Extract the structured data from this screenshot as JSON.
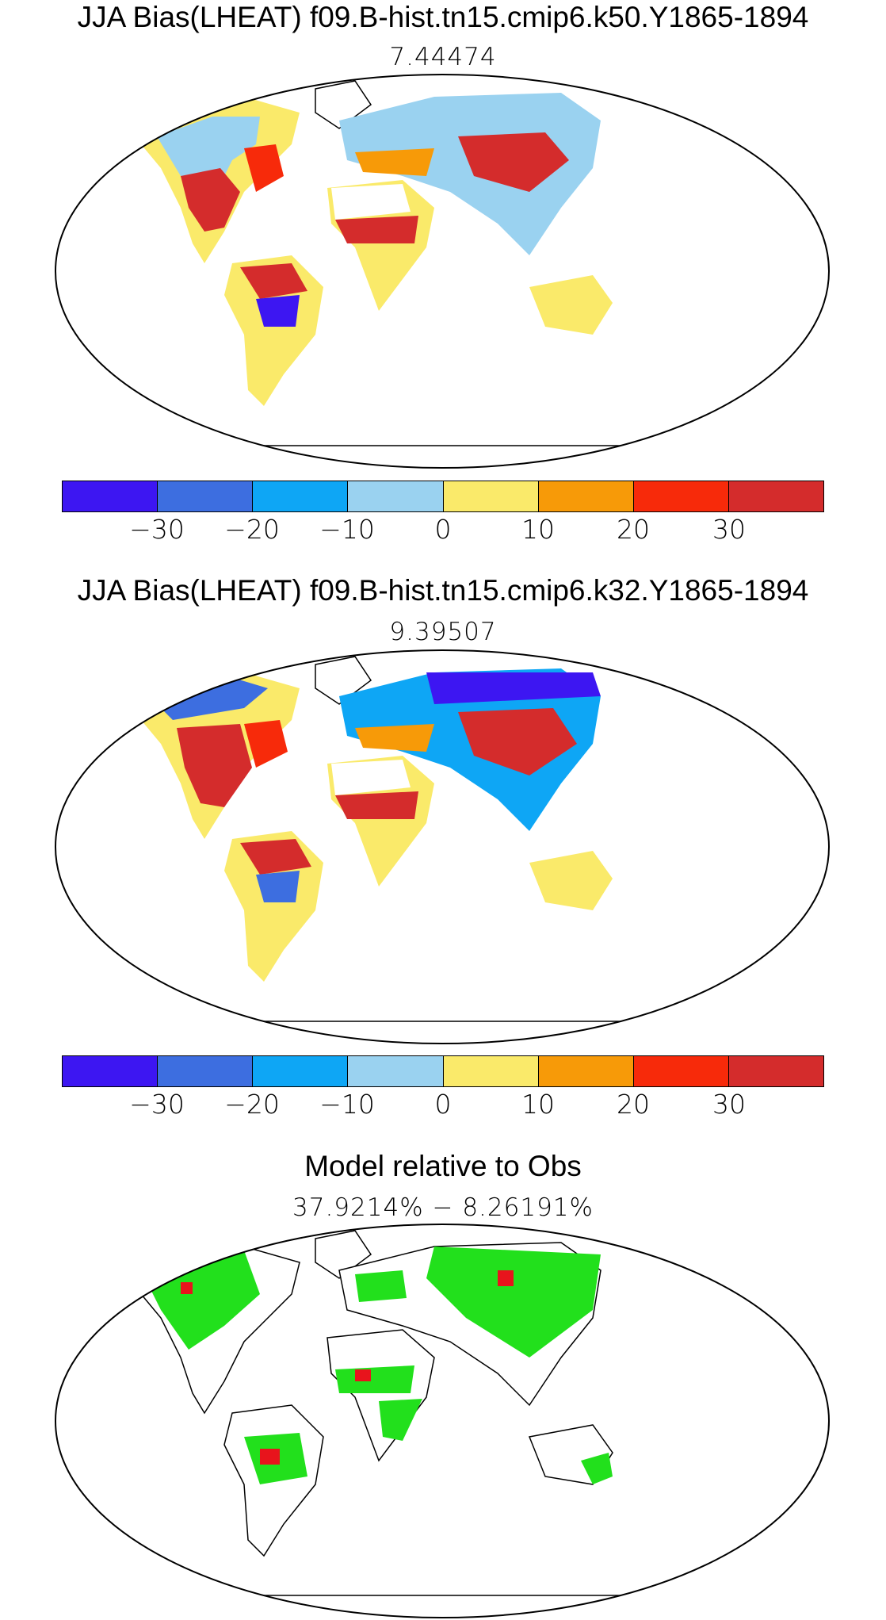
{
  "panels": [
    {
      "title": "JJA Bias(LHEAT) f09.B-hist.tn15.cmip6.k50.Y1865-1894",
      "subtitle": "7.44474"
    },
    {
      "title": "JJA Bias(LHEAT) f09.B-hist.tn15.cmip6.k32.Y1865-1894",
      "subtitle": "9.39507"
    },
    {
      "title": "Model relative to Obs",
      "subtitle": "37.9214% − 8.26191%"
    }
  ],
  "colorbar": {
    "colors": [
      "#3d16f2",
      "#3d6ee0",
      "#0ea6f5",
      "#9ad2f0",
      "#faea6a",
      "#f79a08",
      "#f72a0a",
      "#d42c2c"
    ],
    "tick_labels": [
      "−30",
      "−20",
      "−10",
      "0",
      "10",
      "20",
      "30"
    ]
  },
  "comparison_colors": {
    "better": "#22e01c",
    "worse": "#e8141c"
  }
}
